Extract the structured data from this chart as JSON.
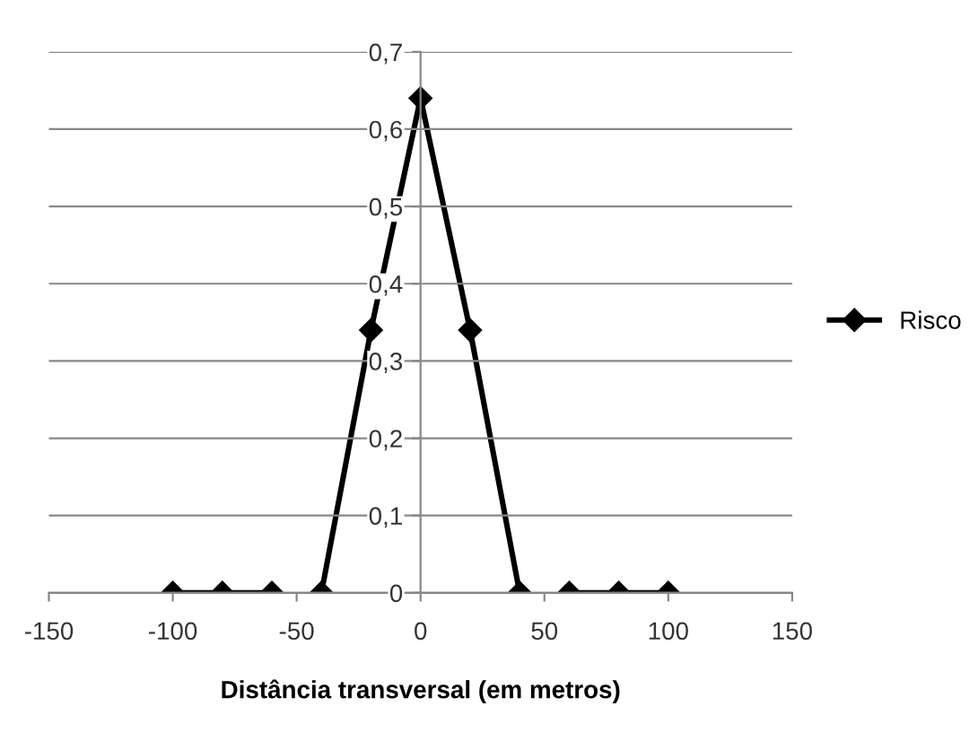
{
  "chart_data": {
    "type": "line",
    "xlabel": "Distância transversal (em metros)",
    "x": [
      -100,
      -80,
      -60,
      -50,
      -40,
      -20,
      0,
      20,
      40,
      50,
      60,
      80,
      100
    ],
    "series": [
      {
        "name": "Risco",
        "color": "#000000",
        "values": [
          0,
          0,
          0,
          null,
          0,
          0.34,
          0.64,
          0.34,
          0,
          null,
          0,
          0,
          0
        ]
      }
    ],
    "xlim": [
      -150,
      150
    ],
    "xticks": [
      -150,
      -100,
      -50,
      0,
      50,
      100,
      150
    ],
    "ylim": [
      0,
      0.7
    ],
    "yticks": [
      0,
      {
        "value": 0.1,
        "label": "0,1"
      },
      {
        "value": 0.2,
        "label": "0,2"
      },
      {
        "value": 0.3,
        "label": "0,3"
      },
      {
        "value": 0.4,
        "label": "0,4"
      },
      {
        "value": 0.5,
        "label": "0,5"
      },
      {
        "value": 0.6,
        "label": "0,6"
      },
      {
        "value": 0.7,
        "label": "0,7"
      }
    ],
    "grid": "y",
    "legend": "right",
    "marker": "diamond",
    "line_style": "solid"
  }
}
